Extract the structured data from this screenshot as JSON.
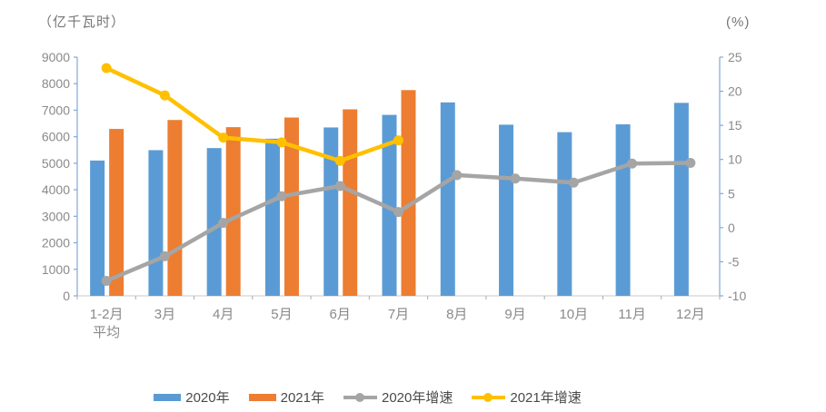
{
  "chart_data": {
    "type": "bar+line",
    "title": "",
    "left_axis": {
      "title": "（亿千瓦时）",
      "min": 0,
      "max": 9000,
      "step": 1000,
      "tick_labels": [
        "0",
        "1000",
        "2000",
        "3000",
        "4000",
        "5000",
        "6000",
        "7000",
        "8000",
        "9000"
      ]
    },
    "right_axis": {
      "title": "(%)",
      "min": -10,
      "max": 25,
      "step": 5,
      "tick_labels": [
        "-10",
        "-5",
        "0",
        "5",
        "10",
        "15",
        "20",
        "25"
      ]
    },
    "categories": [
      "1-2月\n平均",
      "3月",
      "4月",
      "5月",
      "6月",
      "7月",
      "8月",
      "9月",
      "10月",
      "11月",
      "12月"
    ],
    "series": [
      {
        "name": "2020年",
        "type": "bar",
        "axis": "left",
        "color": "#5B9BD5",
        "values": [
          5102,
          5493,
          5572,
          5926,
          6350,
          6824,
          7294,
          6454,
          6172,
          6467,
          7277
        ]
      },
      {
        "name": "2021年",
        "type": "bar",
        "axis": "left",
        "color": "#ED7D31",
        "values": [
          6294,
          6631,
          6361,
          6724,
          7033,
          7758,
          null,
          null,
          null,
          null,
          null
        ]
      },
      {
        "name": "2020年增速",
        "type": "line",
        "axis": "right",
        "color": "#A5A5A5",
        "values": [
          -7.8,
          -4.2,
          0.7,
          4.6,
          6.1,
          2.3,
          7.7,
          7.2,
          6.6,
          9.4,
          9.5
        ]
      },
      {
        "name": "2021年增速",
        "type": "line",
        "axis": "right",
        "color": "#FFC000",
        "values": [
          23.4,
          19.4,
          13.2,
          12.5,
          9.8,
          12.8,
          null,
          null,
          null,
          null,
          null
        ]
      }
    ],
    "legend_position": "bottom",
    "grid": false
  },
  "colors": {
    "value_axis_line": "#7FA8DA",
    "category_axis_line": "#C9C9C9",
    "category_tick": "#ABABAB",
    "tick_label": "#8A8A8A",
    "axis_title": "#757575",
    "legend_text": "#4a4a4a"
  }
}
